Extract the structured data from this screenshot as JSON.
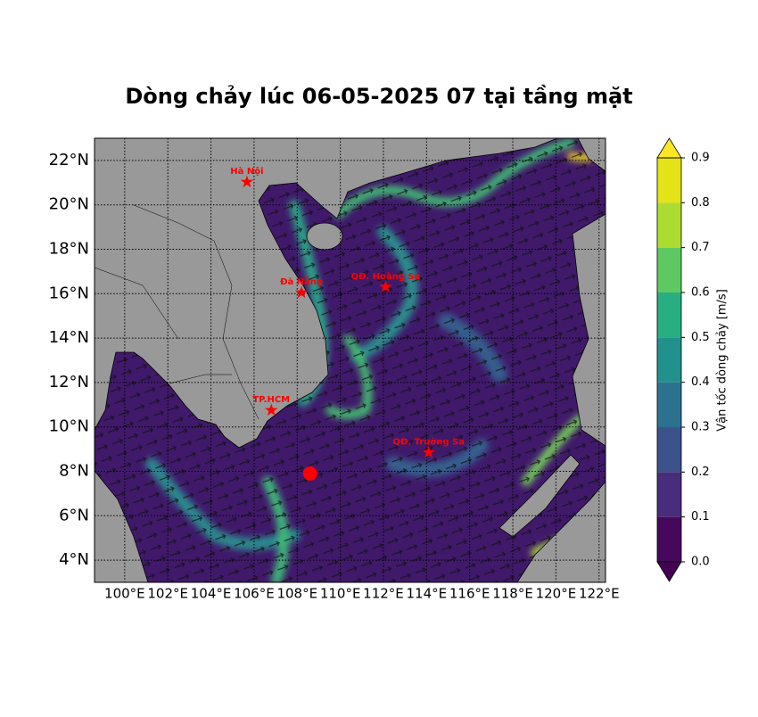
{
  "chart_data": {
    "type": "map",
    "title": "Dòng chảy lúc 06-05-2025 07 tại tầng mặt",
    "xlim": [
      98.6,
      122.3
    ],
    "ylim": [
      3,
      23
    ],
    "xticks": [
      {
        "value": 100,
        "label": "100°E"
      },
      {
        "value": 102,
        "label": "102°E"
      },
      {
        "value": 104,
        "label": "104°E"
      },
      {
        "value": 106,
        "label": "106°E"
      },
      {
        "value": 108,
        "label": "108°E"
      },
      {
        "value": 110,
        "label": "110°E"
      },
      {
        "value": 112,
        "label": "112°E"
      },
      {
        "value": 114,
        "label": "114°E"
      },
      {
        "value": 116,
        "label": "116°E"
      },
      {
        "value": 118,
        "label": "118°E"
      },
      {
        "value": 120,
        "label": "120°E"
      },
      {
        "value": 122,
        "label": "122°E"
      }
    ],
    "yticks": [
      {
        "value": 4,
        "label": "4°N"
      },
      {
        "value": 6,
        "label": "6°N"
      },
      {
        "value": 8,
        "label": "8°N"
      },
      {
        "value": 10,
        "label": "10°N"
      },
      {
        "value": 12,
        "label": "12°N"
      },
      {
        "value": 14,
        "label": "14°N"
      },
      {
        "value": 16,
        "label": "16°N"
      },
      {
        "value": 18,
        "label": "18°N"
      },
      {
        "value": 20,
        "label": "20°N"
      },
      {
        "value": 22,
        "label": "22°N"
      }
    ],
    "grid": true,
    "place_color": "#ff0000",
    "places": [
      {
        "name": "Hà Nội",
        "lon": 105.67,
        "lat": 21.03
      },
      {
        "name": "Đà Nẵng",
        "lon": 108.2,
        "lat": 16.05
      },
      {
        "name": "QĐ. Hoàng Sa",
        "lon": 112.1,
        "lat": 16.3
      },
      {
        "name": "TP.HCM",
        "lon": 106.8,
        "lat": 10.75
      },
      {
        "name": "QĐ. Trường Sa",
        "lon": 114.1,
        "lat": 8.85
      }
    ],
    "marker": {
      "lon": 108.6,
      "lat": 7.9
    },
    "colorbar": {
      "label": "Vận tốc dòng chảy [m/s]",
      "levels": [
        {
          "value": 0,
          "label": "0.0"
        },
        0.1,
        0.2,
        0.3,
        0.4,
        0.5,
        0.6,
        0.7,
        0.8,
        0.9
      ],
      "colors": [
        "#46085c",
        "#472d7b",
        "#3b528b",
        "#2c728e",
        "#21918c",
        "#28ae80",
        "#5ec962",
        "#addc30",
        "#e2e418"
      ],
      "under": "#440154",
      "over": "#fde725"
    }
  }
}
